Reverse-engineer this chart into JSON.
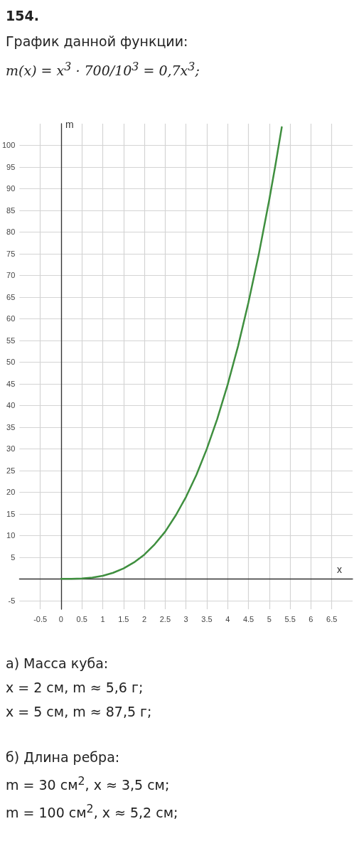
{
  "chart_data": {
    "type": "line",
    "title": "154.",
    "subtitle": "График данной функции:",
    "xlabel": "x",
    "ylabel": "m",
    "x": [
      0,
      0.25,
      0.5,
      0.75,
      1,
      1.25,
      1.5,
      1.75,
      2,
      2.25,
      2.5,
      2.75,
      3,
      3.25,
      3.5,
      3.75,
      4,
      4.25,
      4.5,
      4.75,
      5,
      5.15,
      5.3
    ],
    "series": [
      {
        "color": "#3f8f3f",
        "values": [
          0,
          0,
          0.1,
          0.3,
          0.7,
          1.4,
          2.4,
          3.8,
          5.6,
          8.0,
          10.9,
          14.6,
          18.9,
          24.0,
          30.0,
          36.9,
          44.8,
          53.7,
          63.8,
          75.0,
          87.5,
          95.6,
          104.2
        ]
      }
    ],
    "xlim": [
      -1,
      7
    ],
    "ylim": [
      -7,
      105
    ],
    "xticks": [
      -0.5,
      0,
      0.5,
      1,
      1.5,
      2,
      2.5,
      3,
      3.5,
      4,
      4.5,
      5,
      5.5,
      6,
      6.5
    ],
    "yticks": [
      -5,
      {
        "value": 0,
        "label": null
      },
      5,
      10,
      15,
      20,
      25,
      30,
      35,
      40,
      45,
      50,
      55,
      60,
      65,
      70,
      75,
      80,
      85,
      90,
      95,
      100
    ],
    "grid": true,
    "marker": "none",
    "line_style": "solid",
    "annotations": [
      "m(x) = x$^{3}$ · 700/10$^{3}$ = 0,7x$^{3}$;",
      "а) Масса куба:",
      "x = 2 см,  m ≈ 5,6 г;",
      "x = 5 см,  m ≈ 87,5 г;",
      "б) Длина ребра:",
      "m = 30 см$^{2}$,  x ≈ 3,5 см;",
      "m = 100 см$^{2}$,  x ≈ 5,2 см;"
    ]
  }
}
